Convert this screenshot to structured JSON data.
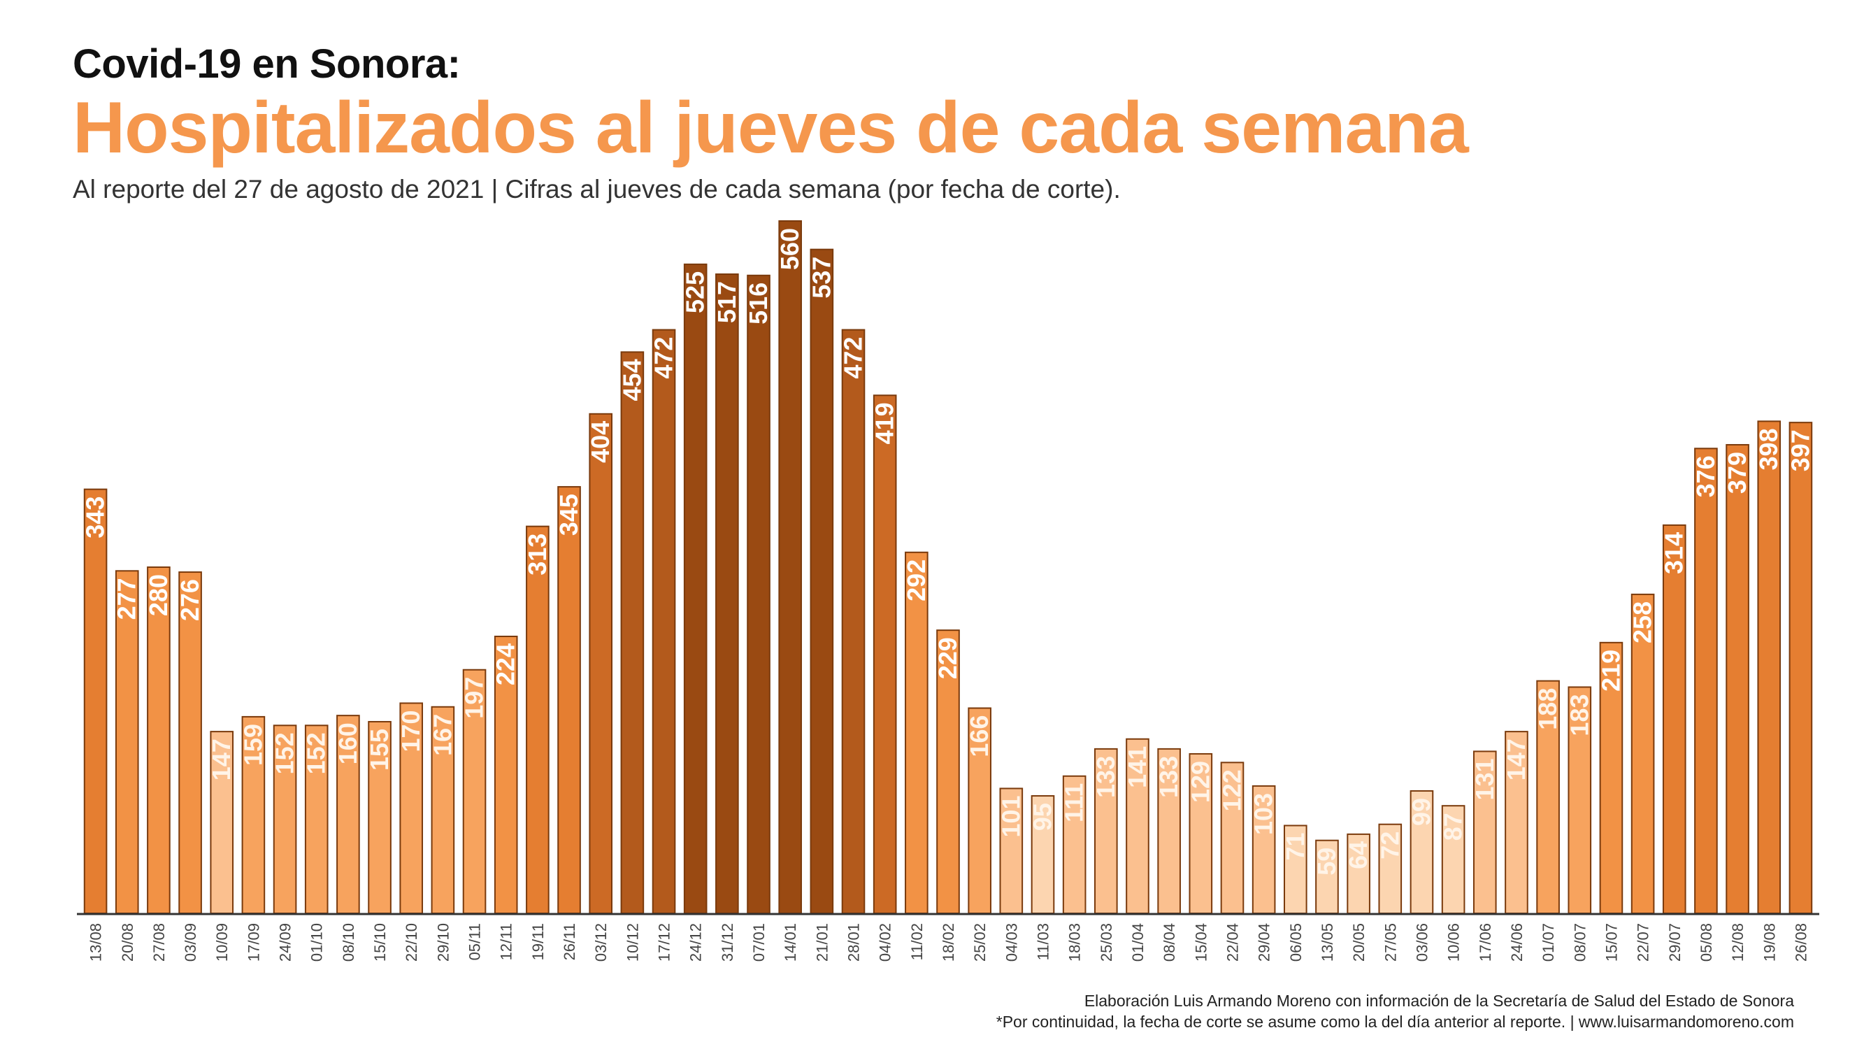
{
  "header": {
    "title_small": "Covid-19 en Sonora:",
    "title_main": "Hospitalizados al jueves de cada semana",
    "subtitle": "Al reporte del 27 de agosto de 2021  | Cifras al jueves de cada semana (por fecha de corte)."
  },
  "footer": {
    "credit_line1": "Elaboración Luis Armando Moreno con información de la Secretaría de Salud del Estado de Sonora",
    "credit_line2": "*Por continuidad, la fecha de corte se asume como la del día anterior al reporte. | www.luisarmandomoreno.com"
  },
  "colors": {
    "accent": "#f5974d",
    "scale": [
      "#fcd5b0",
      "#fbc08f",
      "#f7a35e",
      "#f29245",
      "#e57e31",
      "#cc6a25",
      "#b35a1c",
      "#9a4a12"
    ],
    "bar_stroke": "#7a3a0c",
    "axis": "#333333"
  },
  "chart_data": {
    "type": "bar",
    "title": "Hospitalizados al jueves de cada semana",
    "categories": [
      "13/08",
      "20/08",
      "27/08",
      "03/09",
      "10/09",
      "17/09",
      "24/09",
      "01/10",
      "08/10",
      "15/10",
      "22/10",
      "29/10",
      "05/11",
      "12/11",
      "19/11",
      "26/11",
      "03/12",
      "10/12",
      "17/12",
      "24/12",
      "31/12",
      "07/01",
      "14/01",
      "21/01",
      "28/01",
      "04/02",
      "11/02",
      "18/02",
      "25/02",
      "04/03",
      "11/03",
      "18/03",
      "25/03",
      "01/04",
      "08/04",
      "15/04",
      "22/04",
      "29/04",
      "06/05",
      "13/05",
      "20/05",
      "27/05",
      "03/06",
      "10/06",
      "17/06",
      "24/06",
      "01/07",
      "08/07",
      "15/07",
      "22/07",
      "29/07",
      "05/08",
      "12/08",
      "19/08",
      "26/08"
    ],
    "values": [
      343,
      277,
      280,
      276,
      147,
      159,
      152,
      152,
      160,
      155,
      170,
      167,
      197,
      224,
      313,
      345,
      404,
      454,
      472,
      525,
      517,
      516,
      560,
      537,
      472,
      419,
      292,
      229,
      166,
      101,
      95,
      111,
      133,
      141,
      133,
      129,
      122,
      103,
      71,
      59,
      64,
      72,
      99,
      87,
      131,
      147,
      188,
      183,
      219,
      258,
      314,
      376,
      379,
      398,
      397
    ],
    "ylim": [
      0,
      560
    ],
    "grid": false,
    "legend": "none",
    "data_labels": "inside-top, rotated"
  }
}
